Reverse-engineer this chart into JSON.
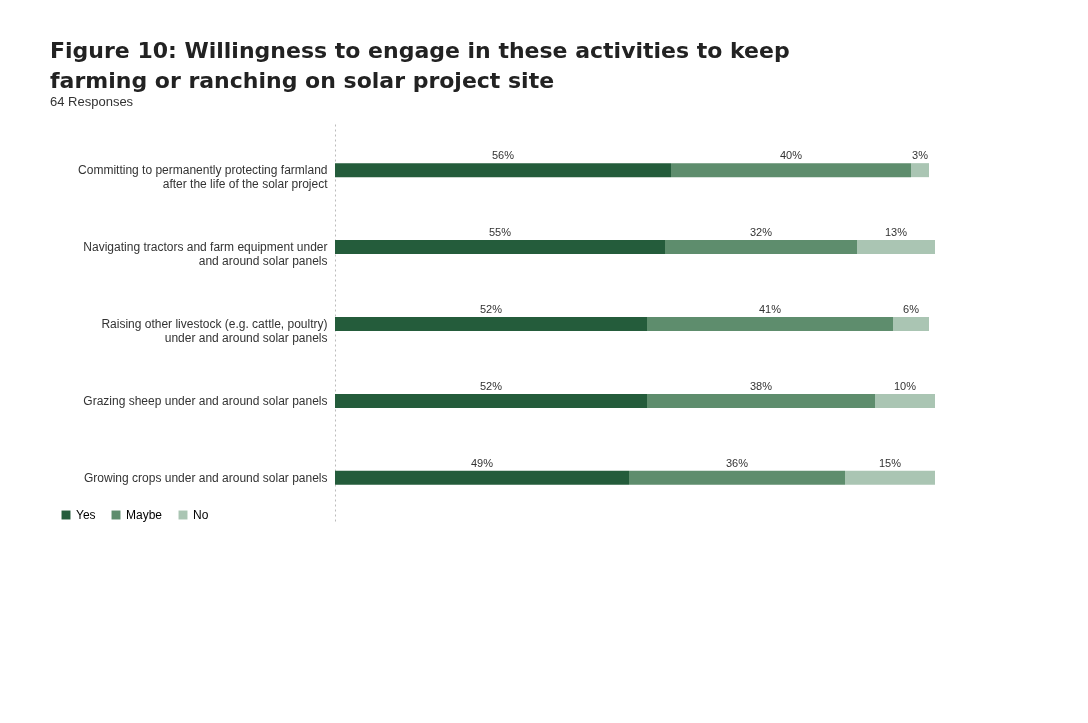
{
  "chart_data": {
    "type": "bar",
    "orientation": "horizontal",
    "stacked": true,
    "title": "Figure 10: Willingness to engage in these activities to keep farming or ranching on solar project site",
    "subtitle": "64 Responses",
    "categories": [
      "Committing to permanently protecting farmland after the life of the solar project",
      "Navigating tractors and farm equipment under and around solar panels",
      "Raising other livestock (e.g. cattle, poultry) under and around solar panels",
      "Grazing sheep under and around solar panels",
      "Growing crops under and around solar panels"
    ],
    "series": [
      {
        "name": "Yes",
        "color": "#245c3b",
        "values": [
          56,
          55,
          52,
          52,
          49
        ],
        "value_labels": [
          "56%",
          "55%",
          "52%",
          "52%",
          "49%"
        ]
      },
      {
        "name": "Maybe",
        "color": "#5e8d6d",
        "values": [
          40,
          32,
          41,
          38,
          36
        ],
        "value_labels": [
          "40%",
          "32%",
          "41%",
          "38%",
          "36%"
        ]
      },
      {
        "name": "No",
        "color": "#aac5b3",
        "values": [
          3,
          13,
          6,
          10,
          15
        ],
        "value_labels": [
          "3%",
          "13%",
          "6%",
          "10%",
          "15%"
        ]
      }
    ],
    "legend": "bottom left",
    "grid": false
  }
}
